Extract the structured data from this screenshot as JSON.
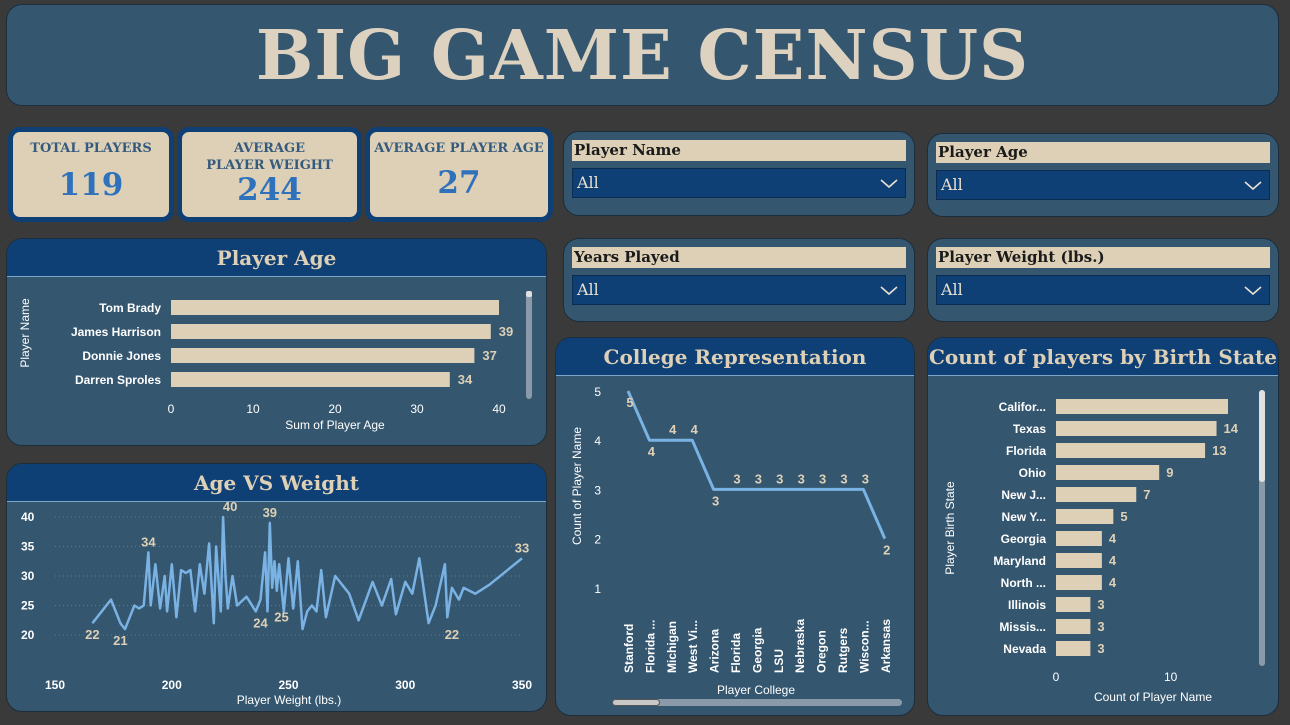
{
  "title": "BIG GAME CENSUS",
  "kpis": [
    {
      "label": "TOTAL PLAYERS",
      "value": "119"
    },
    {
      "label": "AVERAGE PLAYER WEIGHT",
      "value": "244"
    },
    {
      "label": "AVERAGE PLAYER AGE",
      "value": "27"
    }
  ],
  "slicers": {
    "player_name": {
      "label": "Player Name",
      "value": "All"
    },
    "player_age": {
      "label": "Player Age",
      "value": "All"
    },
    "years_played": {
      "label": "Years Played",
      "value": "All"
    },
    "player_weight": {
      "label": "Player Weight (lbs.)",
      "value": "All"
    }
  },
  "colors": {
    "background": "#3a3a3a",
    "panel": "#34566f",
    "header": "#0e3f75",
    "beige": "#ddd0b6",
    "line": "#7ab2e4"
  },
  "icons": {
    "dropdown": "chevron-down-icon"
  },
  "chart_data": [
    {
      "id": "age",
      "type": "bar",
      "orientation": "horizontal",
      "title": "Player Age",
      "xlabel": "Sum of Player Age",
      "ylabel": "Player Name",
      "categories": [
        "Tom Brady",
        "James Harrison",
        "Donnie Jones",
        "Darren Sproles"
      ],
      "values": [
        40,
        39,
        37,
        34
      ],
      "data_labels": [
        "",
        "39",
        "37",
        "34"
      ],
      "xlim": [
        0,
        40
      ],
      "xticks": [
        0,
        10,
        20,
        30,
        40
      ]
    },
    {
      "id": "college",
      "type": "line",
      "title": "College Representation",
      "xlabel": "Player College",
      "ylabel": "Count of Player Name",
      "categories": [
        "Stanford",
        "Florida ...",
        "Michigan",
        "West Vi...",
        "Arizona",
        "Florida",
        "Georgia",
        "LSU",
        "Nebraska",
        "Oregon",
        "Rutgers",
        "Wiscon...",
        "Arkansas"
      ],
      "values": [
        5,
        4,
        4,
        4,
        3,
        3,
        3,
        3,
        3,
        3,
        3,
        3,
        2
      ],
      "ylim": [
        1,
        5
      ],
      "yticks": [
        1,
        2,
        3,
        4,
        5
      ]
    },
    {
      "id": "state",
      "type": "bar",
      "orientation": "horizontal",
      "title": "Count of players by Birth State",
      "xlabel": "Count of Player Name",
      "ylabel": "Player Birth State",
      "categories": [
        "Califor...",
        "Texas",
        "Florida",
        "Ohio",
        "New J...",
        "New Y...",
        "Georgia",
        "Maryland",
        "North ...",
        "Illinois",
        "Missis...",
        "Nevada"
      ],
      "values": [
        15,
        14,
        13,
        9,
        7,
        5,
        4,
        4,
        4,
        3,
        3,
        3
      ],
      "data_labels": [
        "",
        "14",
        "13",
        "9",
        "7",
        "5",
        "4",
        "4",
        "4",
        "3",
        "3",
        "3"
      ],
      "xlim": [
        0,
        15
      ],
      "xticks": [
        0,
        10
      ]
    },
    {
      "id": "weight",
      "type": "line",
      "title": "Age VS Weight",
      "xlabel": "Player Weight (lbs.)",
      "ylabel": "",
      "xlim": [
        150,
        350
      ],
      "ylim": [
        20,
        40
      ],
      "xticks": [
        150,
        200,
        250,
        300,
        350
      ],
      "yticks": [
        20,
        25,
        30,
        35,
        40
      ],
      "x": [
        166,
        174,
        178,
        180,
        184,
        186,
        188,
        190,
        191,
        193,
        195,
        197,
        198,
        200,
        202,
        204,
        206,
        208,
        210,
        212,
        214,
        216,
        218,
        219,
        221,
        222,
        223,
        224,
        226,
        228,
        232,
        236,
        238,
        240,
        241,
        242,
        243,
        244,
        245,
        246,
        248,
        250,
        252,
        254,
        256,
        258,
        260,
        262,
        264,
        266,
        270,
        276,
        280,
        286,
        290,
        294,
        296,
        300,
        303,
        306,
        310,
        313,
        317,
        318,
        320,
        323,
        325,
        330,
        336,
        350
      ],
      "y": [
        22,
        26,
        22,
        21,
        25,
        24.5,
        25,
        34,
        25,
        32,
        24.5,
        30,
        24,
        32,
        23,
        31,
        30.5,
        31,
        24,
        32,
        27,
        35.5,
        22,
        35,
        24,
        40,
        30,
        24.5,
        30,
        25,
        26.5,
        24,
        26,
        34,
        24,
        39,
        28,
        32.5,
        27.5,
        32,
        24,
        33,
        24.5,
        32.5,
        21,
        24,
        25,
        24,
        31,
        23,
        30,
        27,
        22.5,
        29,
        25,
        29.5,
        23.5,
        29,
        27,
        33,
        22,
        25,
        32,
        23,
        28,
        26,
        28,
        27,
        28.5,
        33
      ],
      "point_labels": [
        {
          "x": 166,
          "y": 22,
          "t": "22"
        },
        {
          "x": 178,
          "y": 21,
          "t": "21"
        },
        {
          "x": 190,
          "y": 34,
          "t": "34"
        },
        {
          "x": 225,
          "y": 40,
          "t": "40"
        },
        {
          "x": 242,
          "y": 39,
          "t": "39"
        },
        {
          "x": 238,
          "y": 24,
          "t": "24"
        },
        {
          "x": 247,
          "y": 25,
          "t": "25"
        },
        {
          "x": 320,
          "y": 22,
          "t": "22"
        },
        {
          "x": 350,
          "y": 33,
          "t": "33"
        }
      ]
    }
  ]
}
